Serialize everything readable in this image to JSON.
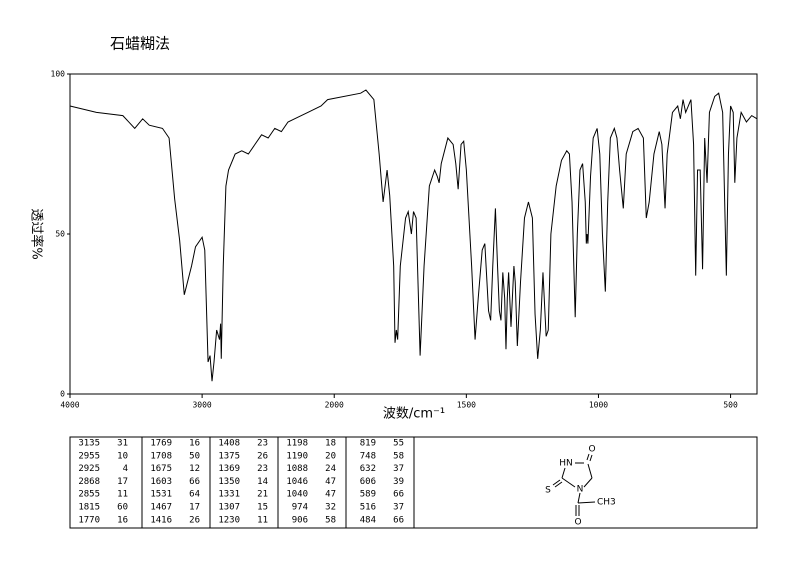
{
  "chart_data": {
    "type": "line",
    "title": "石蜡糊法",
    "x_label": "波数/cm⁻¹",
    "y_label": "透过率%",
    "color": "#000000",
    "xlim": [
      4000,
      400
    ],
    "x_scale_break": 2000,
    "xticks": [
      4000,
      3000,
      2000,
      1500,
      1000,
      500
    ],
    "ylim": [
      0,
      100
    ],
    "yticks": [
      0,
      50,
      100
    ],
    "x": [
      4000,
      3800,
      3600,
      3510,
      3450,
      3400,
      3300,
      3250,
      3208,
      3170,
      3135,
      3080,
      3050,
      3000,
      2980,
      2955,
      2940,
      2925,
      2910,
      2890,
      2868,
      2860,
      2855,
      2840,
      2820,
      2800,
      2750,
      2700,
      2650,
      2600,
      2550,
      2500,
      2450,
      2400,
      2350,
      2300,
      2200,
      2100,
      2050,
      1900,
      1880,
      1850,
      1830,
      1815,
      1800,
      1790,
      1775,
      1770,
      1765,
      1760,
      1750,
      1730,
      1720,
      1708,
      1700,
      1690,
      1675,
      1660,
      1640,
      1620,
      1610,
      1603,
      1595,
      1570,
      1550,
      1540,
      1531,
      1520,
      1510,
      1500,
      1480,
      1467,
      1455,
      1440,
      1430,
      1416,
      1408,
      1400,
      1390,
      1382,
      1375,
      1369,
      1362,
      1355,
      1350,
      1345,
      1340,
      1331,
      1320,
      1315,
      1307,
      1295,
      1280,
      1265,
      1250,
      1240,
      1230,
      1220,
      1210,
      1198,
      1190,
      1180,
      1160,
      1140,
      1120,
      1110,
      1100,
      1088,
      1080,
      1070,
      1060,
      1050,
      1046,
      1043,
      1040,
      1030,
      1020,
      1005,
      995,
      985,
      974,
      965,
      955,
      940,
      930,
      920,
      906,
      895,
      870,
      850,
      830,
      819,
      808,
      790,
      770,
      760,
      748,
      740,
      720,
      700,
      690,
      680,
      670,
      650,
      640,
      632,
      625,
      615,
      606,
      598,
      589,
      580,
      560,
      545,
      530,
      516,
      508,
      500,
      490,
      484,
      476,
      460,
      440,
      420,
      400
    ],
    "values": [
      90,
      88,
      87,
      83,
      86,
      84,
      83,
      80,
      61,
      48,
      31,
      40,
      46,
      49,
      45,
      10,
      12,
      4,
      10,
      20,
      17,
      22,
      11,
      40,
      65,
      70,
      75,
      76,
      75,
      78,
      81,
      80,
      83,
      82,
      85,
      86,
      88,
      90,
      92,
      94,
      95,
      92,
      75,
      60,
      70,
      62,
      40,
      16,
      20,
      17,
      40,
      55,
      57,
      50,
      57,
      55,
      12,
      40,
      65,
      70,
      68,
      66,
      72,
      80,
      78,
      72,
      64,
      78,
      79,
      70,
      40,
      17,
      30,
      45,
      47,
      26,
      23,
      40,
      58,
      40,
      26,
      23,
      38,
      30,
      14,
      30,
      38,
      21,
      40,
      35,
      15,
      35,
      55,
      60,
      55,
      25,
      11,
      20,
      38,
      18,
      20,
      50,
      65,
      73,
      76,
      75,
      60,
      24,
      50,
      70,
      72,
      60,
      47,
      50,
      47,
      68,
      80,
      83,
      75,
      50,
      32,
      60,
      80,
      83,
      80,
      70,
      58,
      75,
      82,
      83,
      80,
      55,
      60,
      75,
      82,
      78,
      58,
      75,
      88,
      90,
      86,
      92,
      88,
      92,
      78,
      37,
      70,
      70,
      39,
      80,
      66,
      88,
      93,
      94,
      88,
      37,
      75,
      90,
      88,
      66,
      80,
      88,
      85,
      87,
      86
    ]
  },
  "peak_table": [
    [
      [
        3135,
        31
      ],
      [
        2955,
        10
      ],
      [
        2925,
        4
      ],
      [
        2868,
        17
      ],
      [
        2855,
        11
      ],
      [
        1815,
        60
      ],
      [
        1770,
        16
      ]
    ],
    [
      [
        1769,
        16
      ],
      [
        1708,
        50
      ],
      [
        1675,
        12
      ],
      [
        1603,
        66
      ],
      [
        1531,
        64
      ],
      [
        1467,
        17
      ],
      [
        1416,
        26
      ]
    ],
    [
      [
        1408,
        23
      ],
      [
        1375,
        26
      ],
      [
        1369,
        23
      ],
      [
        1350,
        14
      ],
      [
        1331,
        21
      ],
      [
        1307,
        15
      ],
      [
        1230,
        11
      ]
    ],
    [
      [
        1198,
        18
      ],
      [
        1190,
        20
      ],
      [
        1088,
        24
      ],
      [
        1046,
        47
      ],
      [
        1040,
        47
      ],
      [
        974,
        32
      ],
      [
        906,
        58
      ]
    ],
    [
      [
        819,
        55
      ],
      [
        748,
        58
      ],
      [
        632,
        37
      ],
      [
        606,
        39
      ],
      [
        589,
        66
      ],
      [
        516,
        37
      ],
      [
        484,
        66
      ]
    ]
  ],
  "structure": {
    "atoms": [
      "O",
      "HN",
      "S",
      "N",
      "O",
      "CH3"
    ]
  }
}
